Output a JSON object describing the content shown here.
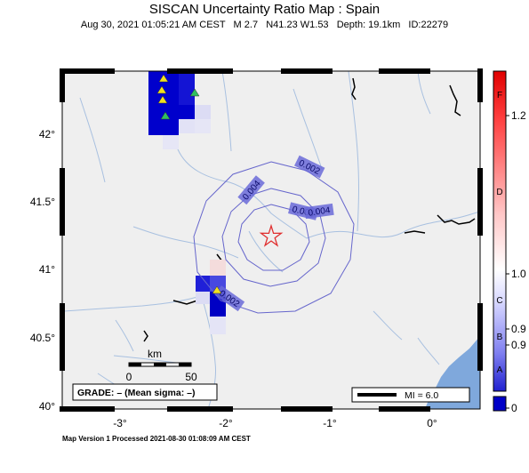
{
  "title": "SISCAN Uncertainty Ratio Map : Spain",
  "subtitle": "Aug 30, 2021 01:05:21 AM CEST   M 2.7   N41.23 W1.53   Depth: 19.1km   ID:22279",
  "footer": "Map Version 1 Processed 2021-08-30 01:08:09 AM CEST",
  "grade_label": "GRADE: – (Mean sigma: –)",
  "mi_label": "MI = 6.0",
  "scale_bar": {
    "unit": "km",
    "zero": "0",
    "max": "50"
  },
  "axes": {
    "lat_ticks": [
      "42°",
      "41.5°",
      "41°",
      "40.5°",
      "40°"
    ],
    "lon_ticks": [
      "-3°",
      "-2°",
      "-1°",
      "0°"
    ]
  },
  "colorbar": {
    "values": [
      "1.2",
      "1.0",
      "0.9",
      "0.9",
      "0"
    ],
    "grades": [
      "F",
      "D",
      "C",
      "B",
      "A"
    ],
    "colors": {
      "top": "#ff0000",
      "mid": "#ffffff",
      "bottom": "#0000c8"
    }
  },
  "contours": [
    "0.002",
    "0.004",
    "0.006",
    "0.004",
    "0.002"
  ],
  "epicenter": {
    "lat": 41.23,
    "lon": -1.53,
    "icon": "star-icon",
    "color": "#e03030"
  },
  "stations_icon": "triangle-icon",
  "station_colors": {
    "yellow": "#f0e020",
    "green": "#30c060"
  },
  "map_colors": {
    "land": "#efefef",
    "river": "#a8c0e0",
    "sea": "#7fa8dc",
    "contour": "#6666cc"
  }
}
